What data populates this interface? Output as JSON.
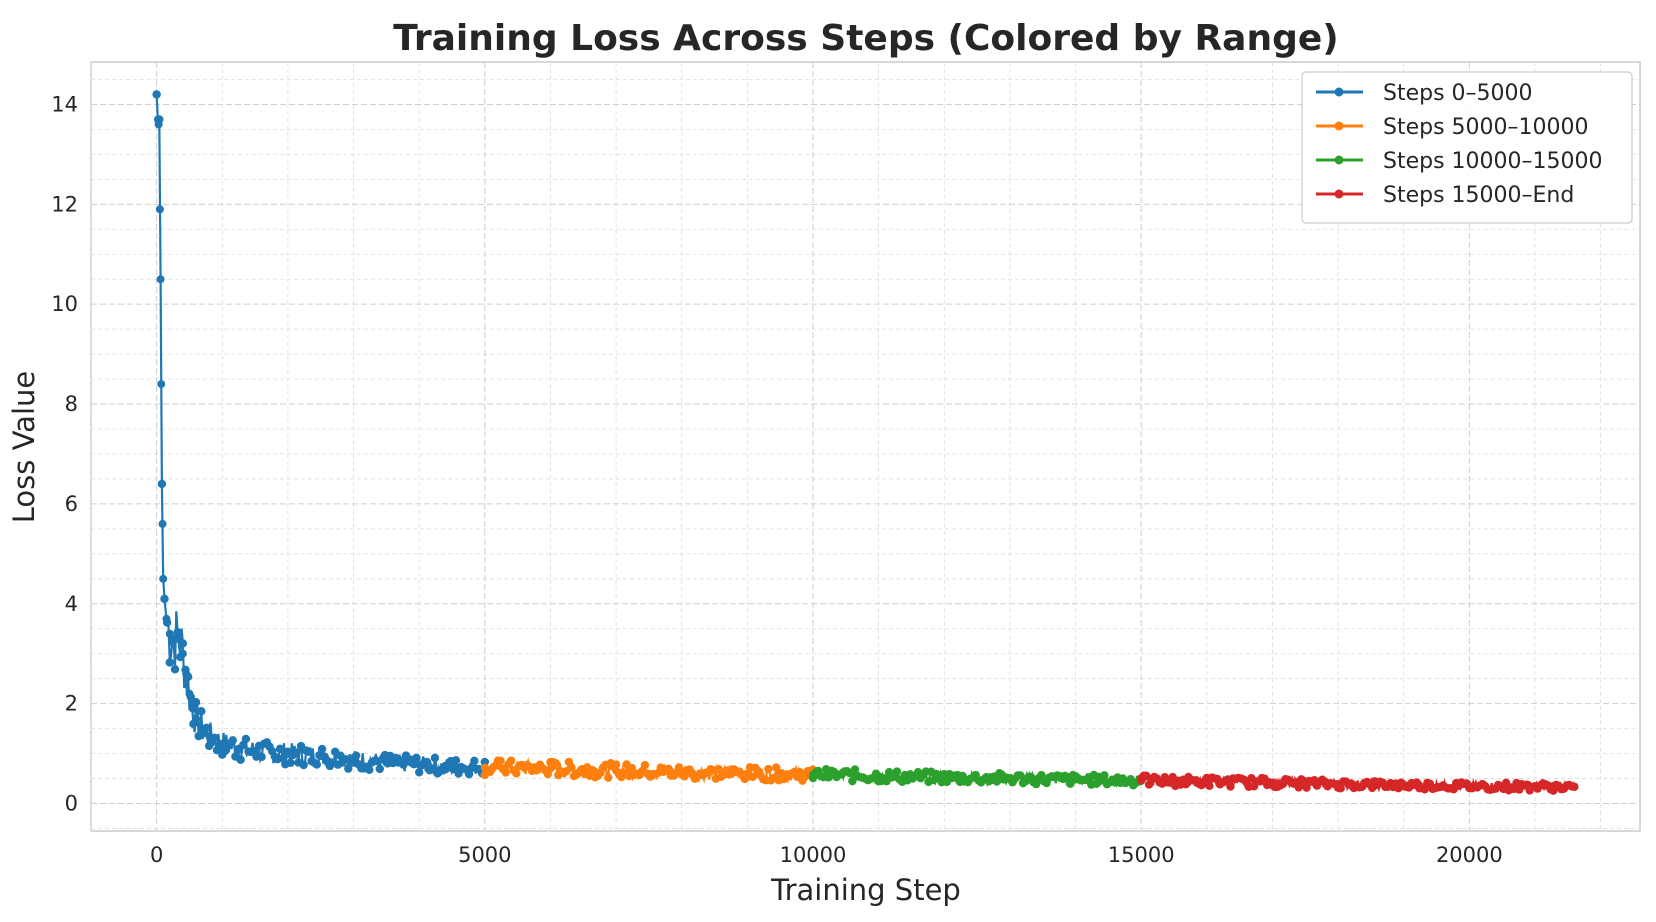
{
  "chart_data": {
    "type": "line",
    "title": "Training Loss Across Steps (Colored by Range)",
    "xlabel": "Training Step",
    "ylabel": "Loss Value",
    "xlim": [
      -1000,
      22600
    ],
    "ylim": [
      -0.55,
      14.85
    ],
    "x_ticks": [
      0,
      5000,
      10000,
      15000,
      20000
    ],
    "y_ticks": [
      0,
      2,
      4,
      6,
      8,
      10,
      12,
      14
    ],
    "grid": true,
    "legend_position": "top-right",
    "series": [
      {
        "name": "Steps 0–5000",
        "color": "#1f77b4",
        "points": [
          [
            0,
            14.2
          ],
          [
            20,
            13.7
          ],
          [
            30,
            13.6
          ],
          [
            40,
            13.7
          ],
          [
            50,
            11.9
          ],
          [
            60,
            10.5
          ],
          [
            70,
            8.4
          ],
          [
            80,
            6.4
          ],
          [
            90,
            5.6
          ],
          [
            100,
            4.5
          ],
          [
            120,
            4.1
          ],
          [
            150,
            3.7
          ],
          [
            200,
            3.4
          ],
          [
            250,
            3.3
          ],
          [
            300,
            3.3
          ],
          [
            350,
            3.3
          ],
          [
            400,
            3.0
          ],
          [
            450,
            2.6
          ],
          [
            500,
            2.2
          ],
          [
            550,
            1.9
          ],
          [
            600,
            1.7
          ],
          [
            700,
            1.5
          ],
          [
            800,
            1.35
          ],
          [
            1000,
            1.2
          ],
          [
            1250,
            1.1
          ],
          [
            1500,
            1.05
          ],
          [
            2000,
            1.0
          ],
          [
            2500,
            0.95
          ],
          [
            3000,
            0.88
          ],
          [
            3500,
            0.82
          ],
          [
            4000,
            0.78
          ],
          [
            4500,
            0.74
          ],
          [
            5000,
            0.72
          ]
        ]
      },
      {
        "name": "Steps 5000–10000",
        "color": "#ff7f0e",
        "points": [
          [
            5000,
            0.72
          ],
          [
            6000,
            0.7
          ],
          [
            7000,
            0.66
          ],
          [
            8000,
            0.62
          ],
          [
            9000,
            0.6
          ],
          [
            10000,
            0.58
          ]
        ]
      },
      {
        "name": "Steps 10000–15000",
        "color": "#2ca02c",
        "points": [
          [
            10000,
            0.58
          ],
          [
            11000,
            0.55
          ],
          [
            12000,
            0.52
          ],
          [
            13000,
            0.5
          ],
          [
            14000,
            0.48
          ],
          [
            15000,
            0.46
          ]
        ]
      },
      {
        "name": "Steps 15000–End",
        "color": "#d62728",
        "points": [
          [
            15000,
            0.46
          ],
          [
            16000,
            0.44
          ],
          [
            17000,
            0.42
          ],
          [
            18000,
            0.39
          ],
          [
            19000,
            0.37
          ],
          [
            20000,
            0.35
          ],
          [
            21000,
            0.34
          ],
          [
            21600,
            0.33
          ]
        ]
      }
    ]
  }
}
